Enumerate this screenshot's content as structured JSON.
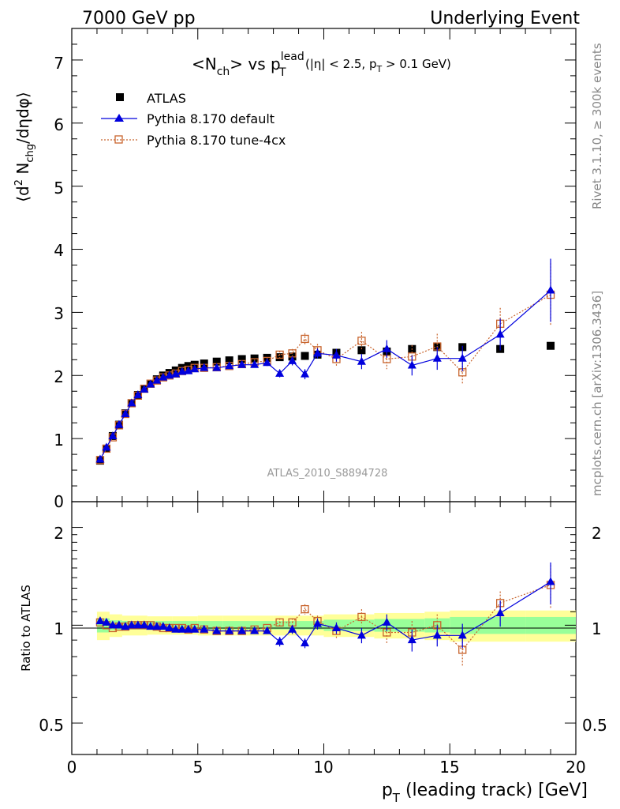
{
  "header": {
    "left_label": "7000 GeV pp",
    "right_label": "Underlying Event"
  },
  "title": {
    "main": "<N",
    "main_sub": "ch",
    "main_tail": "> vs p",
    "pt_sup": "lead",
    "pt_sub": "T",
    "cuts": "(|η| < 2.5, p",
    "cuts_sub": "T",
    "cuts_tail": " > 0.1 GeV)"
  },
  "side_labels": {
    "rivet": "Rivet 3.1.10, ≥ 300k events",
    "mcplots": "mcplots.cern.ch [arXiv:1306.3436]"
  },
  "analysis_id": "ATLAS_2010_S8894728",
  "legend": {
    "atlas": "ATLAS",
    "default": "Pythia 8.170 default",
    "tune": "Pythia 8.170 tune-4cx"
  },
  "colors": {
    "atlas": "#000000",
    "default": "#0000dd",
    "tune": "#c8642d",
    "band_inner": "#99ff99",
    "band_outer": "#ffff99"
  },
  "axes": {
    "ylabel_top_1": "⟨d",
    "ylabel_top_sup": "2",
    "ylabel_top_2": " N",
    "ylabel_top_sub": "chg",
    "ylabel_top_3": "/dηdφ⟩",
    "ylabel_bottom": "Ratio to ATLAS",
    "xlabel_1": "p",
    "xlabel_sub": "T",
    "xlabel_2": " (leading track) [GeV]",
    "x_ticks": [
      "0",
      "5",
      "10",
      "15",
      "20"
    ],
    "y_ticks_top": [
      "0",
      "1",
      "2",
      "3",
      "4",
      "5",
      "6",
      "7"
    ],
    "y_ticks_ratio": [
      "0.5",
      "1",
      "2"
    ]
  },
  "chart_data": [
    {
      "type": "scatter",
      "panel": "main",
      "xlim": [
        0,
        20
      ],
      "ylim": [
        0,
        7.5
      ],
      "x": [
        1.125,
        1.375,
        1.625,
        1.875,
        2.125,
        2.375,
        2.625,
        2.875,
        3.125,
        3.375,
        3.625,
        3.875,
        4.125,
        4.375,
        4.625,
        4.875,
        5.25,
        5.75,
        6.25,
        6.75,
        7.25,
        7.75,
        8.25,
        8.75,
        9.25,
        9.75,
        10.5,
        11.5,
        12.5,
        13.5,
        14.5,
        15.5,
        17.0,
        19.0
      ],
      "series": [
        {
          "name": "ATLAS",
          "values": [
            0.65,
            0.84,
            1.04,
            1.22,
            1.4,
            1.56,
            1.69,
            1.79,
            1.87,
            1.94,
            2.0,
            2.04,
            2.08,
            2.12,
            2.15,
            2.17,
            2.19,
            2.22,
            2.24,
            2.26,
            2.27,
            2.28,
            2.29,
            2.3,
            2.31,
            2.33,
            2.36,
            2.4,
            2.38,
            2.42,
            2.45,
            2.45,
            2.42,
            2.47
          ]
        },
        {
          "name": "Pythia 8.170 default",
          "values": [
            0.67,
            0.86,
            1.04,
            1.22,
            1.39,
            1.56,
            1.69,
            1.78,
            1.86,
            1.92,
            1.97,
            2.0,
            2.02,
            2.06,
            2.07,
            2.1,
            2.12,
            2.12,
            2.15,
            2.17,
            2.17,
            2.2,
            2.03,
            2.23,
            2.02,
            2.35,
            2.32,
            2.22,
            2.42,
            2.16,
            2.27,
            2.27,
            2.65,
            3.35
          ],
          "errors": [
            0.02,
            0.02,
            0.02,
            0.02,
            0.02,
            0.02,
            0.02,
            0.02,
            0.02,
            0.02,
            0.02,
            0.02,
            0.02,
            0.02,
            0.02,
            0.02,
            0.02,
            0.02,
            0.03,
            0.03,
            0.04,
            0.05,
            0.06,
            0.07,
            0.08,
            0.08,
            0.1,
            0.12,
            0.14,
            0.16,
            0.18,
            0.2,
            0.25,
            0.5
          ]
        },
        {
          "name": "Pythia 8.170 tune-4cx",
          "values": [
            0.66,
            0.84,
            1.02,
            1.21,
            1.39,
            1.56,
            1.68,
            1.79,
            1.87,
            1.92,
            1.97,
            2.0,
            2.03,
            2.07,
            2.09,
            2.12,
            2.12,
            2.13,
            2.15,
            2.18,
            2.21,
            2.23,
            2.33,
            2.35,
            2.58,
            2.4,
            2.26,
            2.55,
            2.26,
            2.3,
            2.46,
            2.05,
            2.82,
            3.28
          ],
          "errors": [
            0.02,
            0.02,
            0.02,
            0.02,
            0.02,
            0.02,
            0.02,
            0.02,
            0.02,
            0.02,
            0.02,
            0.02,
            0.02,
            0.02,
            0.02,
            0.02,
            0.02,
            0.02,
            0.03,
            0.03,
            0.04,
            0.05,
            0.06,
            0.07,
            0.09,
            0.1,
            0.12,
            0.14,
            0.16,
            0.18,
            0.2,
            0.2,
            0.25,
            0.5
          ]
        }
      ]
    },
    {
      "type": "line",
      "panel": "ratio",
      "xlim": [
        0,
        20
      ],
      "ylim": [
        0.4,
        2.4
      ],
      "ylog": true,
      "x": [
        1.125,
        1.375,
        1.625,
        1.875,
        2.125,
        2.375,
        2.625,
        2.875,
        3.125,
        3.375,
        3.625,
        3.875,
        4.125,
        4.375,
        4.625,
        4.875,
        5.25,
        5.75,
        6.25,
        6.75,
        7.25,
        7.75,
        8.25,
        8.75,
        9.25,
        9.75,
        10.5,
        11.5,
        12.5,
        13.5,
        14.5,
        15.5,
        17.0,
        19.0
      ],
      "series": [
        {
          "name": "Pythia 8.170 default",
          "values": [
            1.03,
            1.02,
            1.0,
            1.0,
            0.99,
            1.0,
            1.0,
            1.0,
            0.99,
            0.99,
            0.99,
            0.98,
            0.97,
            0.97,
            0.97,
            0.97,
            0.97,
            0.96,
            0.96,
            0.96,
            0.96,
            0.96,
            0.89,
            0.97,
            0.88,
            1.01,
            0.98,
            0.93,
            1.02,
            0.9,
            0.93,
            0.93,
            1.09,
            1.36
          ],
          "errors": [
            0.02,
            0.02,
            0.02,
            0.01,
            0.01,
            0.01,
            0.01,
            0.01,
            0.01,
            0.01,
            0.01,
            0.01,
            0.01,
            0.01,
            0.01,
            0.01,
            0.01,
            0.01,
            0.01,
            0.01,
            0.02,
            0.02,
            0.03,
            0.03,
            0.03,
            0.04,
            0.04,
            0.05,
            0.06,
            0.07,
            0.07,
            0.08,
            0.1,
            0.2
          ]
        },
        {
          "name": "Pythia 8.170 tune-4cx",
          "values": [
            1.02,
            1.0,
            0.98,
            0.99,
            0.99,
            1.0,
            1.0,
            1.0,
            1.0,
            0.99,
            0.98,
            0.98,
            0.98,
            0.98,
            0.97,
            0.98,
            0.97,
            0.96,
            0.96,
            0.96,
            0.97,
            0.98,
            1.02,
            1.02,
            1.12,
            1.03,
            0.96,
            1.06,
            0.95,
            0.95,
            1.0,
            0.84,
            1.17,
            1.33
          ],
          "errors": [
            0.02,
            0.02,
            0.02,
            0.01,
            0.01,
            0.01,
            0.01,
            0.01,
            0.01,
            0.01,
            0.01,
            0.01,
            0.01,
            0.01,
            0.01,
            0.01,
            0.01,
            0.01,
            0.01,
            0.01,
            0.02,
            0.02,
            0.03,
            0.03,
            0.04,
            0.04,
            0.05,
            0.06,
            0.07,
            0.08,
            0.08,
            0.09,
            0.1,
            0.2
          ]
        }
      ],
      "band": {
        "edges": [
          1,
          1.5,
          2,
          3,
          4,
          5,
          6,
          8,
          10,
          12,
          14,
          15,
          18,
          20
        ],
        "inner": [
          0.05,
          0.035,
          0.03,
          0.03,
          0.03,
          0.03,
          0.03,
          0.03,
          0.04,
          0.045,
          0.05,
          0.06,
          0.06
        ],
        "outer": [
          0.1,
          0.08,
          0.07,
          0.065,
          0.065,
          0.07,
          0.07,
          0.07,
          0.08,
          0.09,
          0.1,
          0.11,
          0.11
        ]
      }
    }
  ]
}
